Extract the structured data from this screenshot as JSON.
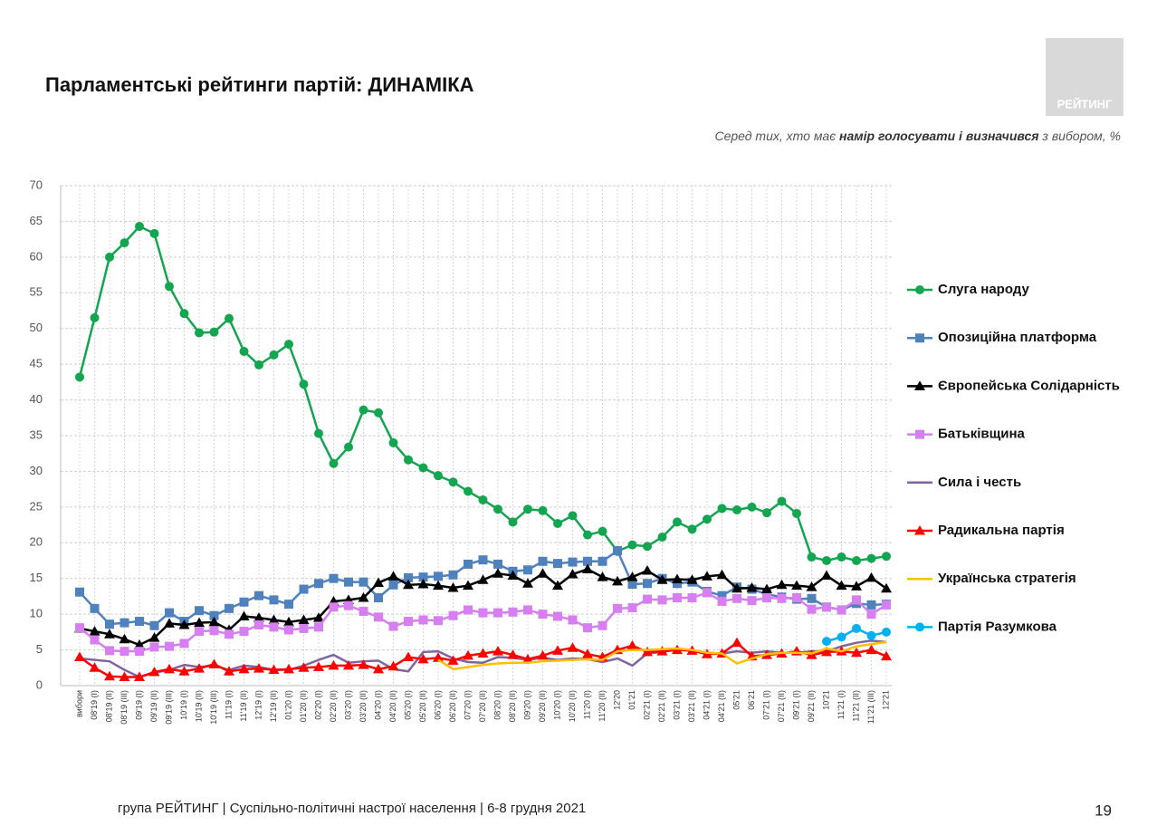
{
  "chart_data": {
    "type": "line",
    "title": "Парламентські рейтинги партій: ДИНАМІКА",
    "subtitle": [
      "Серед тих, хто має ",
      "намір голосувати і визначився",
      " з вибором, %"
    ],
    "logo": "РЕЙТИНГ",
    "footer": "група РЕЙТИНГ | Суспільно-політичні настрої населення  | 6-8 грудня 2021",
    "page_number": "19",
    "categories": [
      "вибори",
      "08'19 (I)",
      "08'19 (II)",
      "08'19 (III)",
      "09'19 (I)",
      "09'19 (II)",
      "09'19 (III)",
      "10'19 (I)",
      "10'19 (II)",
      "10'19 (III)",
      "11'19 (I)",
      "11'19 (II)",
      "12'19 (I)",
      "12'19 (II)",
      "01'20 (I)",
      "01'20 (II)",
      "02'20 (I)",
      "02'20 (II)",
      "03'20 (I)",
      "03'20 (II)",
      "04'20 (I)",
      "04'20 (II)",
      "05'20 (I)",
      "05'20 (II)",
      "06'20 (I)",
      "06'20 (II)",
      "07'20 (I)",
      "07'20 (II)",
      "08'20 (I)",
      "08'20 (II)",
      "09'20 (I)",
      "09'20 (II)",
      "10'20 (I)",
      "10'20 (II)",
      "11'20 (I)",
      "11'20 (II)",
      "12'20",
      "01'21",
      "02'21 (I)",
      "02'21 (II)",
      "03'21 (I)",
      "03'21 (II)",
      "04'21 (I)",
      "04'21 (II)",
      "05'21",
      "06'21",
      "07'21 (I)",
      "07'21 (II)",
      "09'21 (I)",
      "09'21 (II)",
      "10'21",
      "11'21 (I)",
      "11'21 (II)",
      "11'21 (III)",
      "12'21"
    ],
    "ylim": [
      0,
      70
    ],
    "yticks": [
      0,
      5,
      10,
      15,
      20,
      25,
      30,
      35,
      40,
      45,
      50,
      55,
      60,
      65,
      70
    ],
    "grid": true,
    "legend": "right",
    "series": [
      {
        "name": "Слуга народу",
        "color": "#13a54f",
        "marker": "circle",
        "values": [
          43.2,
          51.5,
          60,
          62,
          64.3,
          63.3,
          55.9,
          52.1,
          49.4,
          49.5,
          51.4,
          46.8,
          44.9,
          46.3,
          47.8,
          42.2,
          35.3,
          31.1,
          33.4,
          38.6,
          38.2,
          34,
          31.6,
          30.5,
          29.4,
          28.5,
          27.2,
          26,
          24.7,
          22.9,
          24.7,
          24.5,
          22.7,
          23.8,
          21.1,
          21.6,
          18.8,
          19.7,
          19.5,
          20.8,
          22.9,
          21.9,
          23.3,
          24.8,
          24.6,
          25,
          24.2,
          25.8,
          24.1,
          18,
          17.5,
          18,
          17.5,
          17.8,
          18.1
        ]
      },
      {
        "name": "Опозиційна платформа",
        "color": "#4f81bd",
        "marker": "square",
        "values": [
          13.1,
          10.8,
          8.6,
          8.8,
          9,
          8.4,
          10.2,
          9,
          10.5,
          9.8,
          10.8,
          11.7,
          12.6,
          12,
          11.4,
          13.5,
          14.3,
          15,
          14.5,
          14.5,
          12.3,
          14.1,
          15.1,
          15.2,
          15.3,
          15.5,
          17,
          17.6,
          17,
          16,
          16.2,
          17.4,
          17.1,
          17.3,
          17.4,
          17.4,
          18.9,
          14.2,
          14.3,
          15,
          14.3,
          14.5,
          13.2,
          12.6,
          13.8,
          13.5,
          12.8,
          12.4,
          12.1,
          12.2,
          11,
          10.6,
          11.5,
          11.3,
          11.4
        ]
      },
      {
        "name": "Європейська Солідарність",
        "color": "#000000",
        "marker": "triangle",
        "values": [
          8,
          7.6,
          7.2,
          6.5,
          5.7,
          6.7,
          8.7,
          8.5,
          8.8,
          8.9,
          7.8,
          9.7,
          9.5,
          9.2,
          8.9,
          9.2,
          9.5,
          11.8,
          12,
          12.3,
          14.4,
          15.3,
          14.1,
          14.2,
          14,
          13.7,
          14,
          14.8,
          15.7,
          15.4,
          14.3,
          15.7,
          14,
          15.6,
          16.3,
          15.2,
          14.6,
          15.2,
          16.1,
          14.8,
          14.9,
          14.8,
          15.3,
          15.5,
          13.6,
          13.7,
          13.5,
          14.1,
          14,
          13.8,
          15.4,
          14,
          13.9,
          15.1,
          13.6
        ]
      },
      {
        "name": "Батьківщина",
        "color": "#d77ff0",
        "marker": "square",
        "values": [
          8.1,
          6.4,
          4.9,
          4.8,
          4.8,
          5.4,
          5.5,
          5.9,
          7.6,
          7.7,
          7.2,
          7.6,
          8.5,
          8.2,
          7.8,
          8,
          8.2,
          11,
          11.2,
          10.4,
          9.6,
          8.3,
          9,
          9.2,
          9.1,
          9.8,
          10.6,
          10.2,
          10.2,
          10.3,
          10.6,
          10,
          9.7,
          9.2,
          8.1,
          8.4,
          10.8,
          10.9,
          12.1,
          12,
          12.3,
          12.3,
          13,
          11.8,
          12.2,
          11.9,
          12.3,
          12.2,
          12.3,
          10.7,
          11,
          10.6,
          12,
          10,
          11.3
        ]
      },
      {
        "name": "Сила і честь",
        "color": "#8064a2",
        "marker": "none",
        "values": [
          3.8,
          3.6,
          3.4,
          2.2,
          1.2,
          1.8,
          2.2,
          2.9,
          2.6,
          2.8,
          2.2,
          2.8,
          2.6,
          2.2,
          2.2,
          2.8,
          3.6,
          4.3,
          3.2,
          3.4,
          3.5,
          2.3,
          2,
          4.7,
          4.8,
          3.8,
          3.3,
          3.2,
          4,
          3.9,
          3.6,
          3.9,
          3.6,
          3.8,
          3.7,
          3.3,
          3.8,
          2.8,
          4.5,
          4.7,
          5.1,
          4.9,
          4.6,
          4.5,
          4.8,
          4.6,
          4.8,
          4.6,
          4.6,
          4.8,
          4.8,
          5.5,
          6,
          6.3,
          6.1
        ]
      },
      {
        "name": "Радикальна партія",
        "color": "#ff0000",
        "marker": "triangle",
        "values": [
          4,
          2.5,
          1.3,
          1.2,
          1.2,
          1.9,
          2.3,
          2,
          2.4,
          3,
          2,
          2.3,
          2.4,
          2.2,
          2.3,
          2.5,
          2.6,
          2.8,
          2.8,
          2.9,
          2.3,
          2.7,
          4,
          3.7,
          3.9,
          3.5,
          4.2,
          4.5,
          4.8,
          4.3,
          3.7,
          4.2,
          4.9,
          5.3,
          4.4,
          4,
          5,
          5.6,
          4.7,
          4.8,
          5,
          4.9,
          4.4,
          4.5,
          6,
          4.1,
          4.3,
          4.5,
          4.8,
          4.3,
          4.7,
          4.8,
          4.6,
          5,
          4.1
        ]
      },
      {
        "name": "Українська стратегія",
        "color": "#ffc000",
        "marker": "none",
        "values": [
          null,
          null,
          null,
          null,
          null,
          null,
          null,
          null,
          null,
          null,
          null,
          null,
          null,
          null,
          null,
          null,
          null,
          null,
          null,
          null,
          null,
          null,
          null,
          null,
          3.6,
          2.3,
          2.6,
          2.9,
          3.1,
          3.2,
          3.2,
          3.4,
          3.5,
          3.6,
          3.7,
          3.6,
          4.8,
          5,
          5,
          5.1,
          5.2,
          5,
          4.6,
          4.5,
          3.1,
          3.8,
          4.4,
          4.6,
          4.6,
          4.5,
          5.2,
          4.8,
          5.5,
          5.8,
          6.1
        ]
      },
      {
        "name": "Партія Разумкова",
        "color": "#00b0f0",
        "marker": "circle",
        "values": [
          null,
          null,
          null,
          null,
          null,
          null,
          null,
          null,
          null,
          null,
          null,
          null,
          null,
          null,
          null,
          null,
          null,
          null,
          null,
          null,
          null,
          null,
          null,
          null,
          null,
          null,
          null,
          null,
          null,
          null,
          null,
          null,
          null,
          null,
          null,
          null,
          null,
          null,
          null,
          null,
          null,
          null,
          null,
          null,
          null,
          null,
          null,
          null,
          null,
          null,
          6.2,
          6.8,
          8,
          7,
          7.5
        ]
      }
    ]
  }
}
